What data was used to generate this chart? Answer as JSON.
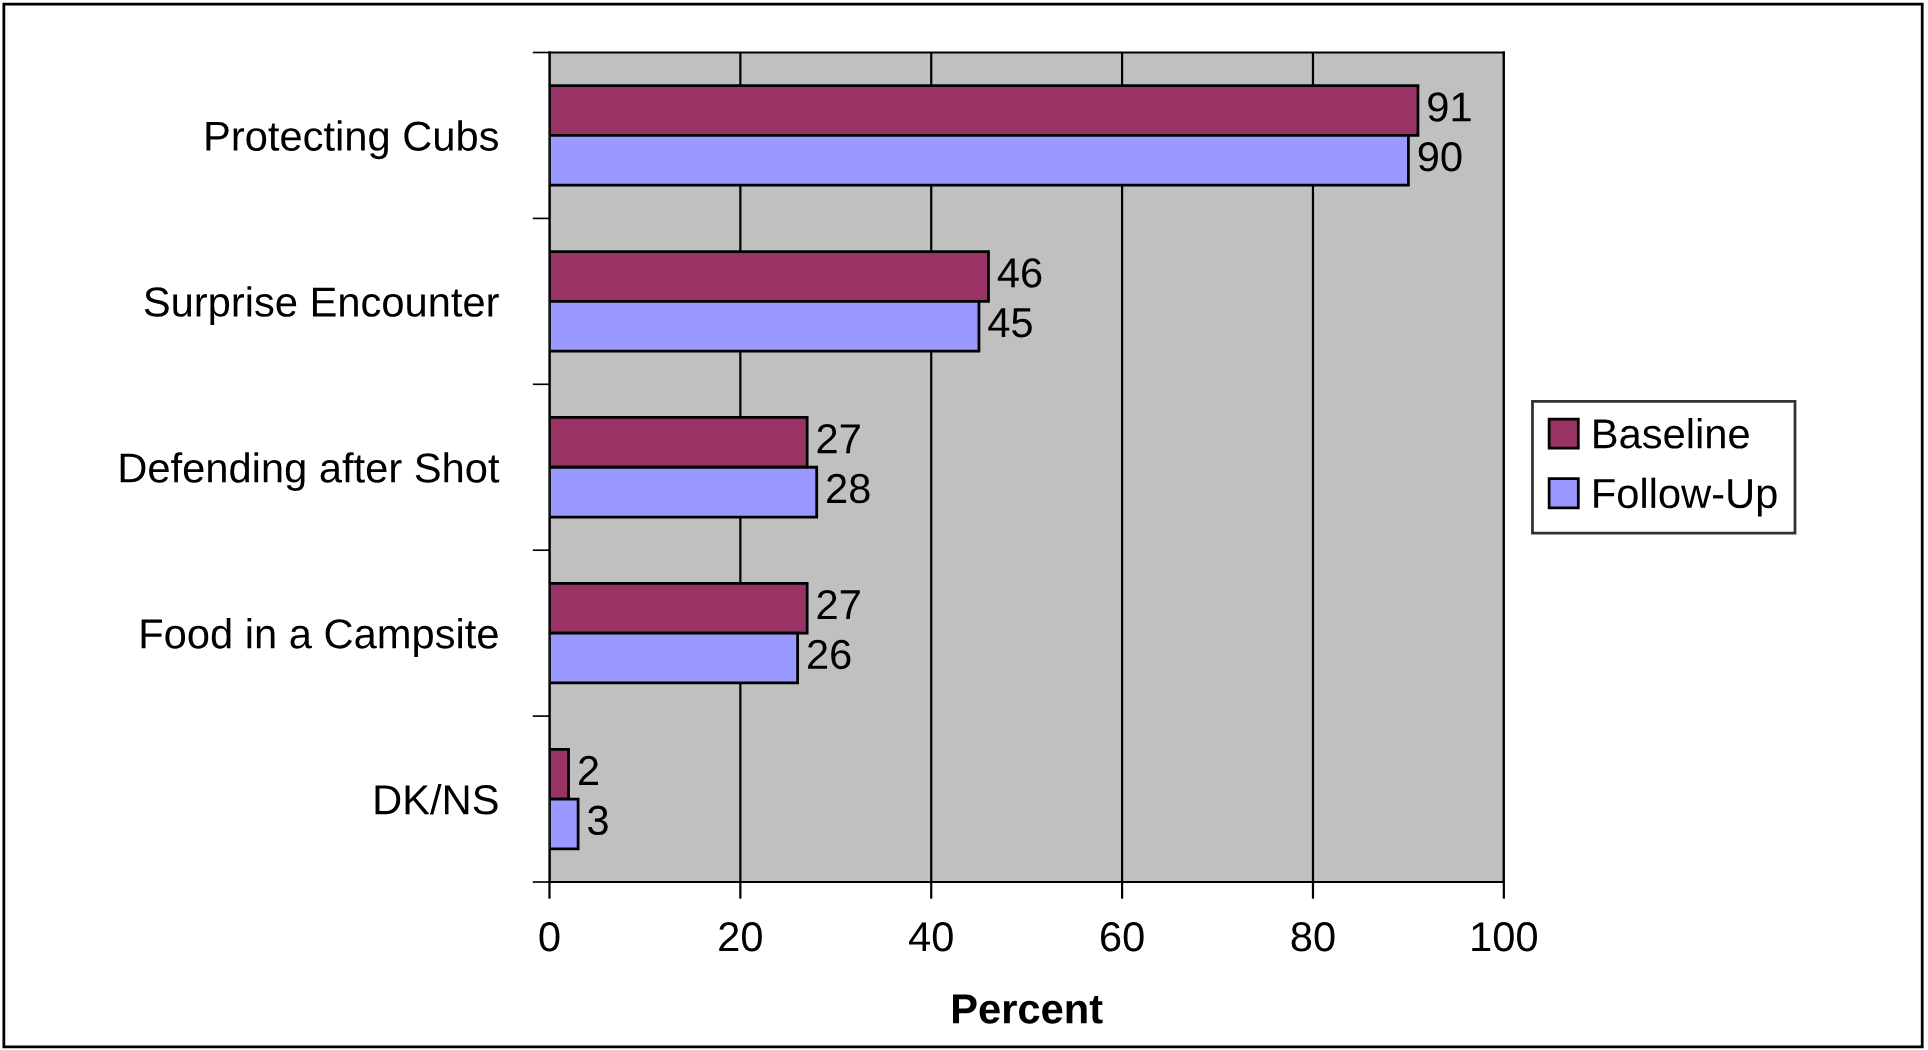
{
  "chart_data": {
    "type": "bar",
    "orientation": "horizontal",
    "xlabel": "Percent",
    "categories": [
      "Protecting Cubs",
      "Surprise Encounter",
      "Defending after Shot",
      "Food in a Campsite",
      "DK/NS"
    ],
    "series": [
      {
        "name": "Baseline",
        "color": "#993366",
        "values": [
          91,
          46,
          27,
          27,
          2
        ]
      },
      {
        "name": "Follow-Up",
        "color": "#9999ff",
        "values": [
          90,
          45,
          28,
          26,
          3
        ]
      }
    ],
    "xlim": [
      0,
      100
    ],
    "xticks": [
      0,
      20,
      40,
      60,
      80,
      100
    ],
    "grid": "x",
    "legend": "right",
    "data_labels": true
  }
}
